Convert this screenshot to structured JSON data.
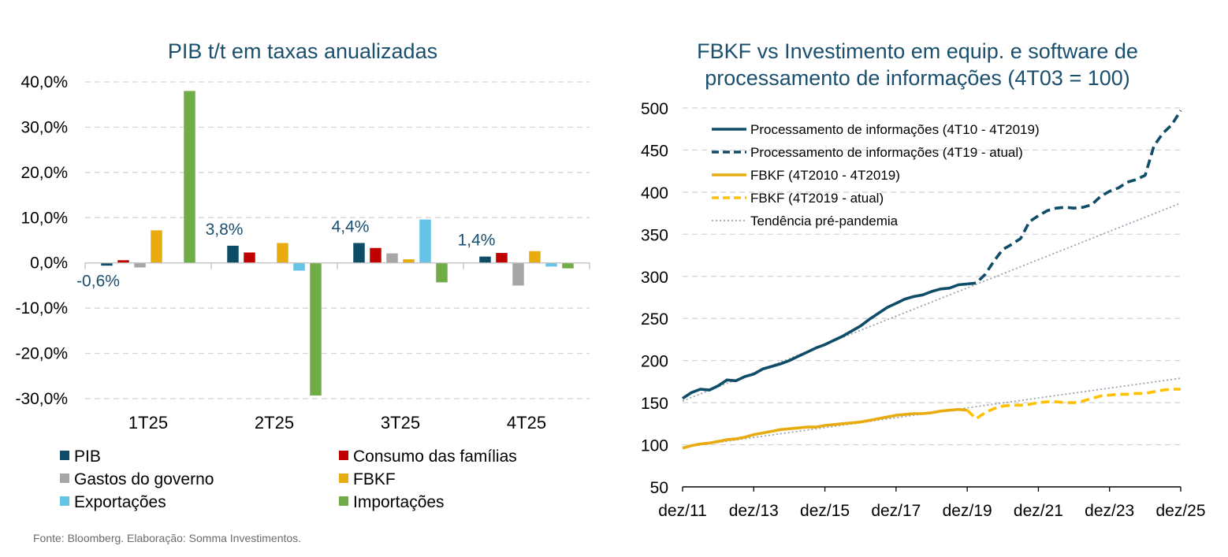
{
  "source_note": "Fonte: Bloomberg. Elaboração: Somma Investimentos.",
  "colors": {
    "pib": "#0e4c68",
    "consumo": "#c00000",
    "governo": "#a6a6a6",
    "fbkf": "#e8ac10",
    "exportacoes": "#66c4e6",
    "importacoes": "#70ad47",
    "proc": "#0e4c68",
    "fbkf_line": "#e8ac10",
    "fbkf_dash": "#ffc000",
    "trend": "#9aa3b2"
  },
  "chart_data": [
    {
      "type": "bar",
      "title": "PIB t/t em taxas anualizadas",
      "categories": [
        "1T25",
        "2T25",
        "3T25",
        "4T25"
      ],
      "ylim": [
        -30,
        40
      ],
      "yticks": [
        40,
        30,
        20,
        10,
        0,
        -10,
        -20,
        -30
      ],
      "ytick_labels": [
        "40,0%",
        "30,0%",
        "20,0%",
        "10,0%",
        "0,0%",
        "-10,0%",
        "-20,0%",
        "-30,0%"
      ],
      "series": [
        {
          "name": "PIB",
          "color_key": "pib",
          "values": [
            -0.6,
            3.8,
            4.4,
            1.4
          ]
        },
        {
          "name": "Consumo das famílias",
          "color_key": "consumo",
          "values": [
            0.6,
            2.3,
            3.3,
            2.2
          ]
        },
        {
          "name": "Gastos do governo",
          "color_key": "governo",
          "values": [
            -1.0,
            0.0,
            2.1,
            -5.0
          ]
        },
        {
          "name": "FBKF",
          "color_key": "fbkf",
          "values": [
            7.2,
            4.4,
            0.8,
            2.6
          ]
        },
        {
          "name": "Exportações",
          "color_key": "exportacoes",
          "values": [
            0.0,
            -1.7,
            9.6,
            -0.8
          ]
        },
        {
          "name": "Importações",
          "color_key": "importacoes",
          "values": [
            38.0,
            -29.3,
            -4.3,
            -1.2
          ]
        }
      ],
      "data_labels": [
        "-0,6%",
        "3,8%",
        "4,4%",
        "1,4%"
      ]
    },
    {
      "type": "line",
      "title_lines": [
        "FBKF vs Investimento em equip. e software de",
        "processamento de informações (4T03 = 100)"
      ],
      "xlim": [
        2011.917,
        2025.917
      ],
      "ylim": [
        50,
        500
      ],
      "yticks": [
        500,
        450,
        400,
        350,
        300,
        250,
        200,
        150,
        100,
        50
      ],
      "xticks": [
        2011.917,
        2013.917,
        2015.917,
        2017.917,
        2019.917,
        2021.917,
        2023.917,
        2025.917
      ],
      "xtick_labels": [
        "dez/11",
        "dez/13",
        "dez/15",
        "dez/17",
        "dez/19",
        "dez/21",
        "dez/23",
        "dez/25"
      ],
      "series": [
        {
          "name": "Processamento de informações (4T10 - 4T2019)",
          "color_key": "proc",
          "style": "solid",
          "x": [
            2011.917,
            2012.167,
            2012.417,
            2012.667,
            2012.917,
            2013.167,
            2013.417,
            2013.667,
            2013.917,
            2014.167,
            2014.417,
            2014.667,
            2014.917,
            2015.167,
            2015.417,
            2015.667,
            2015.917,
            2016.167,
            2016.417,
            2016.667,
            2016.917,
            2017.167,
            2017.417,
            2017.667,
            2017.917,
            2018.167,
            2018.417,
            2018.667,
            2018.917,
            2019.167,
            2019.417,
            2019.667,
            2019.917
          ],
          "y": [
            155,
            162,
            166,
            165,
            170,
            177,
            176,
            181,
            184,
            190,
            193,
            196,
            200,
            205,
            210,
            215,
            219,
            224,
            229,
            235,
            241,
            249,
            256,
            263,
            268,
            273,
            276,
            278,
            282,
            285,
            286,
            290,
            291
          ]
        },
        {
          "name": "Processamento de informações (4T19 - atual)",
          "color_key": "proc",
          "style": "dashed",
          "x": [
            2019.917,
            2020.167,
            2020.417,
            2020.667,
            2020.917,
            2021.167,
            2021.417,
            2021.667,
            2021.917,
            2022.167,
            2022.417,
            2022.667,
            2022.917,
            2023.167,
            2023.417,
            2023.667,
            2023.917,
            2024.167,
            2024.417,
            2024.667,
            2024.917,
            2025.167,
            2025.417,
            2025.667,
            2025.917
          ],
          "y": [
            291,
            292,
            302,
            318,
            332,
            338,
            345,
            365,
            372,
            378,
            381,
            382,
            381,
            382,
            385,
            395,
            401,
            405,
            412,
            415,
            420,
            455,
            470,
            480,
            497
          ]
        },
        {
          "name": "FBKF (4T2010 - 4T2019)",
          "color_key": "fbkf_line",
          "style": "solid",
          "x": [
            2011.917,
            2012.167,
            2012.417,
            2012.667,
            2012.917,
            2013.167,
            2013.417,
            2013.667,
            2013.917,
            2014.167,
            2014.417,
            2014.667,
            2014.917,
            2015.167,
            2015.417,
            2015.667,
            2015.917,
            2016.167,
            2016.417,
            2016.667,
            2016.917,
            2017.167,
            2017.417,
            2017.667,
            2017.917,
            2018.167,
            2018.417,
            2018.667,
            2018.917,
            2019.167,
            2019.417,
            2019.667,
            2019.917
          ],
          "y": [
            96,
            99,
            101,
            102,
            104,
            106,
            107,
            109,
            112,
            114,
            116,
            118,
            119,
            120,
            121,
            121,
            123,
            124,
            125,
            126,
            127,
            129,
            131,
            133,
            135,
            136,
            137,
            137,
            138,
            140,
            141,
            142,
            141
          ]
        },
        {
          "name": "FBKF (4T2019 - atual)",
          "color_key": "fbkf_dash",
          "style": "dashed",
          "x": [
            2019.917,
            2020.167,
            2020.417,
            2020.667,
            2020.917,
            2021.167,
            2021.417,
            2021.667,
            2021.917,
            2022.167,
            2022.417,
            2022.667,
            2022.917,
            2023.167,
            2023.417,
            2023.667,
            2023.917,
            2024.167,
            2024.417,
            2024.667,
            2024.917,
            2025.167,
            2025.417,
            2025.667,
            2025.917
          ],
          "y": [
            141,
            131,
            138,
            143,
            146,
            147,
            147,
            148,
            150,
            151,
            151,
            150,
            150,
            152,
            155,
            158,
            159,
            160,
            160,
            161,
            161,
            163,
            165,
            166,
            166
          ]
        },
        {
          "name": "Tendência pré-pandemia",
          "color_key": "trend",
          "style": "dotted",
          "segments": [
            {
              "x": [
                2011.917,
                2025.917
              ],
              "y": [
                152,
                387
              ]
            },
            {
              "x": [
                2011.917,
                2025.917
              ],
              "y": [
                97,
                179
              ]
            }
          ]
        }
      ]
    }
  ]
}
